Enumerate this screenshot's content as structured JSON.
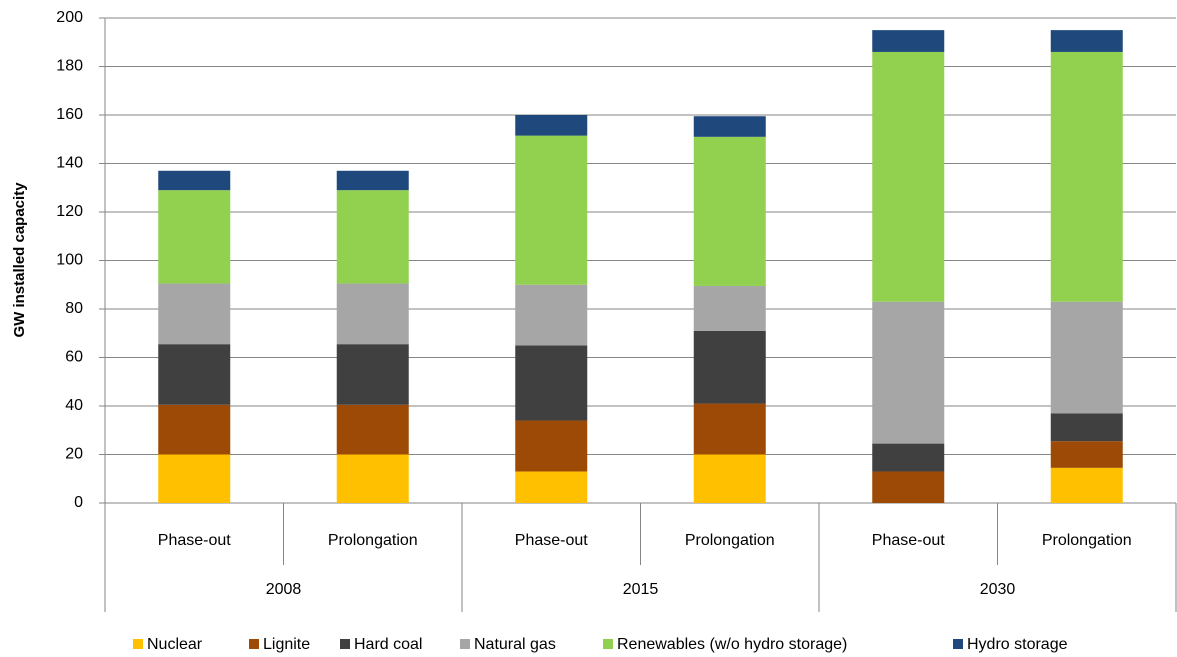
{
  "chart_data": {
    "type": "stacked-bar",
    "y_label": "GW installed capacity",
    "categories": [
      "Phase-out",
      "Prolongation",
      "Phase-out",
      "Prolongation",
      "Phase-out",
      "Prolongation"
    ],
    "groups": [
      "2008",
      "2015",
      "2030"
    ],
    "series": [
      {
        "name": "Nuclear",
        "color": "#ffc000",
        "values": [
          20,
          20,
          13,
          20,
          0,
          14.5
        ]
      },
      {
        "name": "Lignite",
        "color": "#9c4a06",
        "values": [
          20.5,
          20.5,
          21,
          21,
          13,
          11
        ]
      },
      {
        "name": "Hard coal",
        "color": "#404040",
        "values": [
          25,
          25,
          31,
          30,
          11.5,
          11.5
        ]
      },
      {
        "name": "Natural gas",
        "color": "#a6a6a6",
        "values": [
          25,
          25,
          25,
          18.5,
          58.5,
          46
        ]
      },
      {
        "name": "Renewables (w/o hydro storage)",
        "color": "#92d050",
        "values": [
          38.5,
          38.5,
          61.5,
          61.5,
          103,
          103
        ]
      },
      {
        "name": "Hydro storage",
        "color": "#1f497d",
        "values": [
          8,
          8,
          8.5,
          8.5,
          9,
          9
        ]
      }
    ],
    "ylim": [
      0,
      200
    ],
    "yticks": [
      0,
      20,
      40,
      60,
      80,
      100,
      120,
      140,
      160,
      180,
      200
    ],
    "grid": true
  }
}
